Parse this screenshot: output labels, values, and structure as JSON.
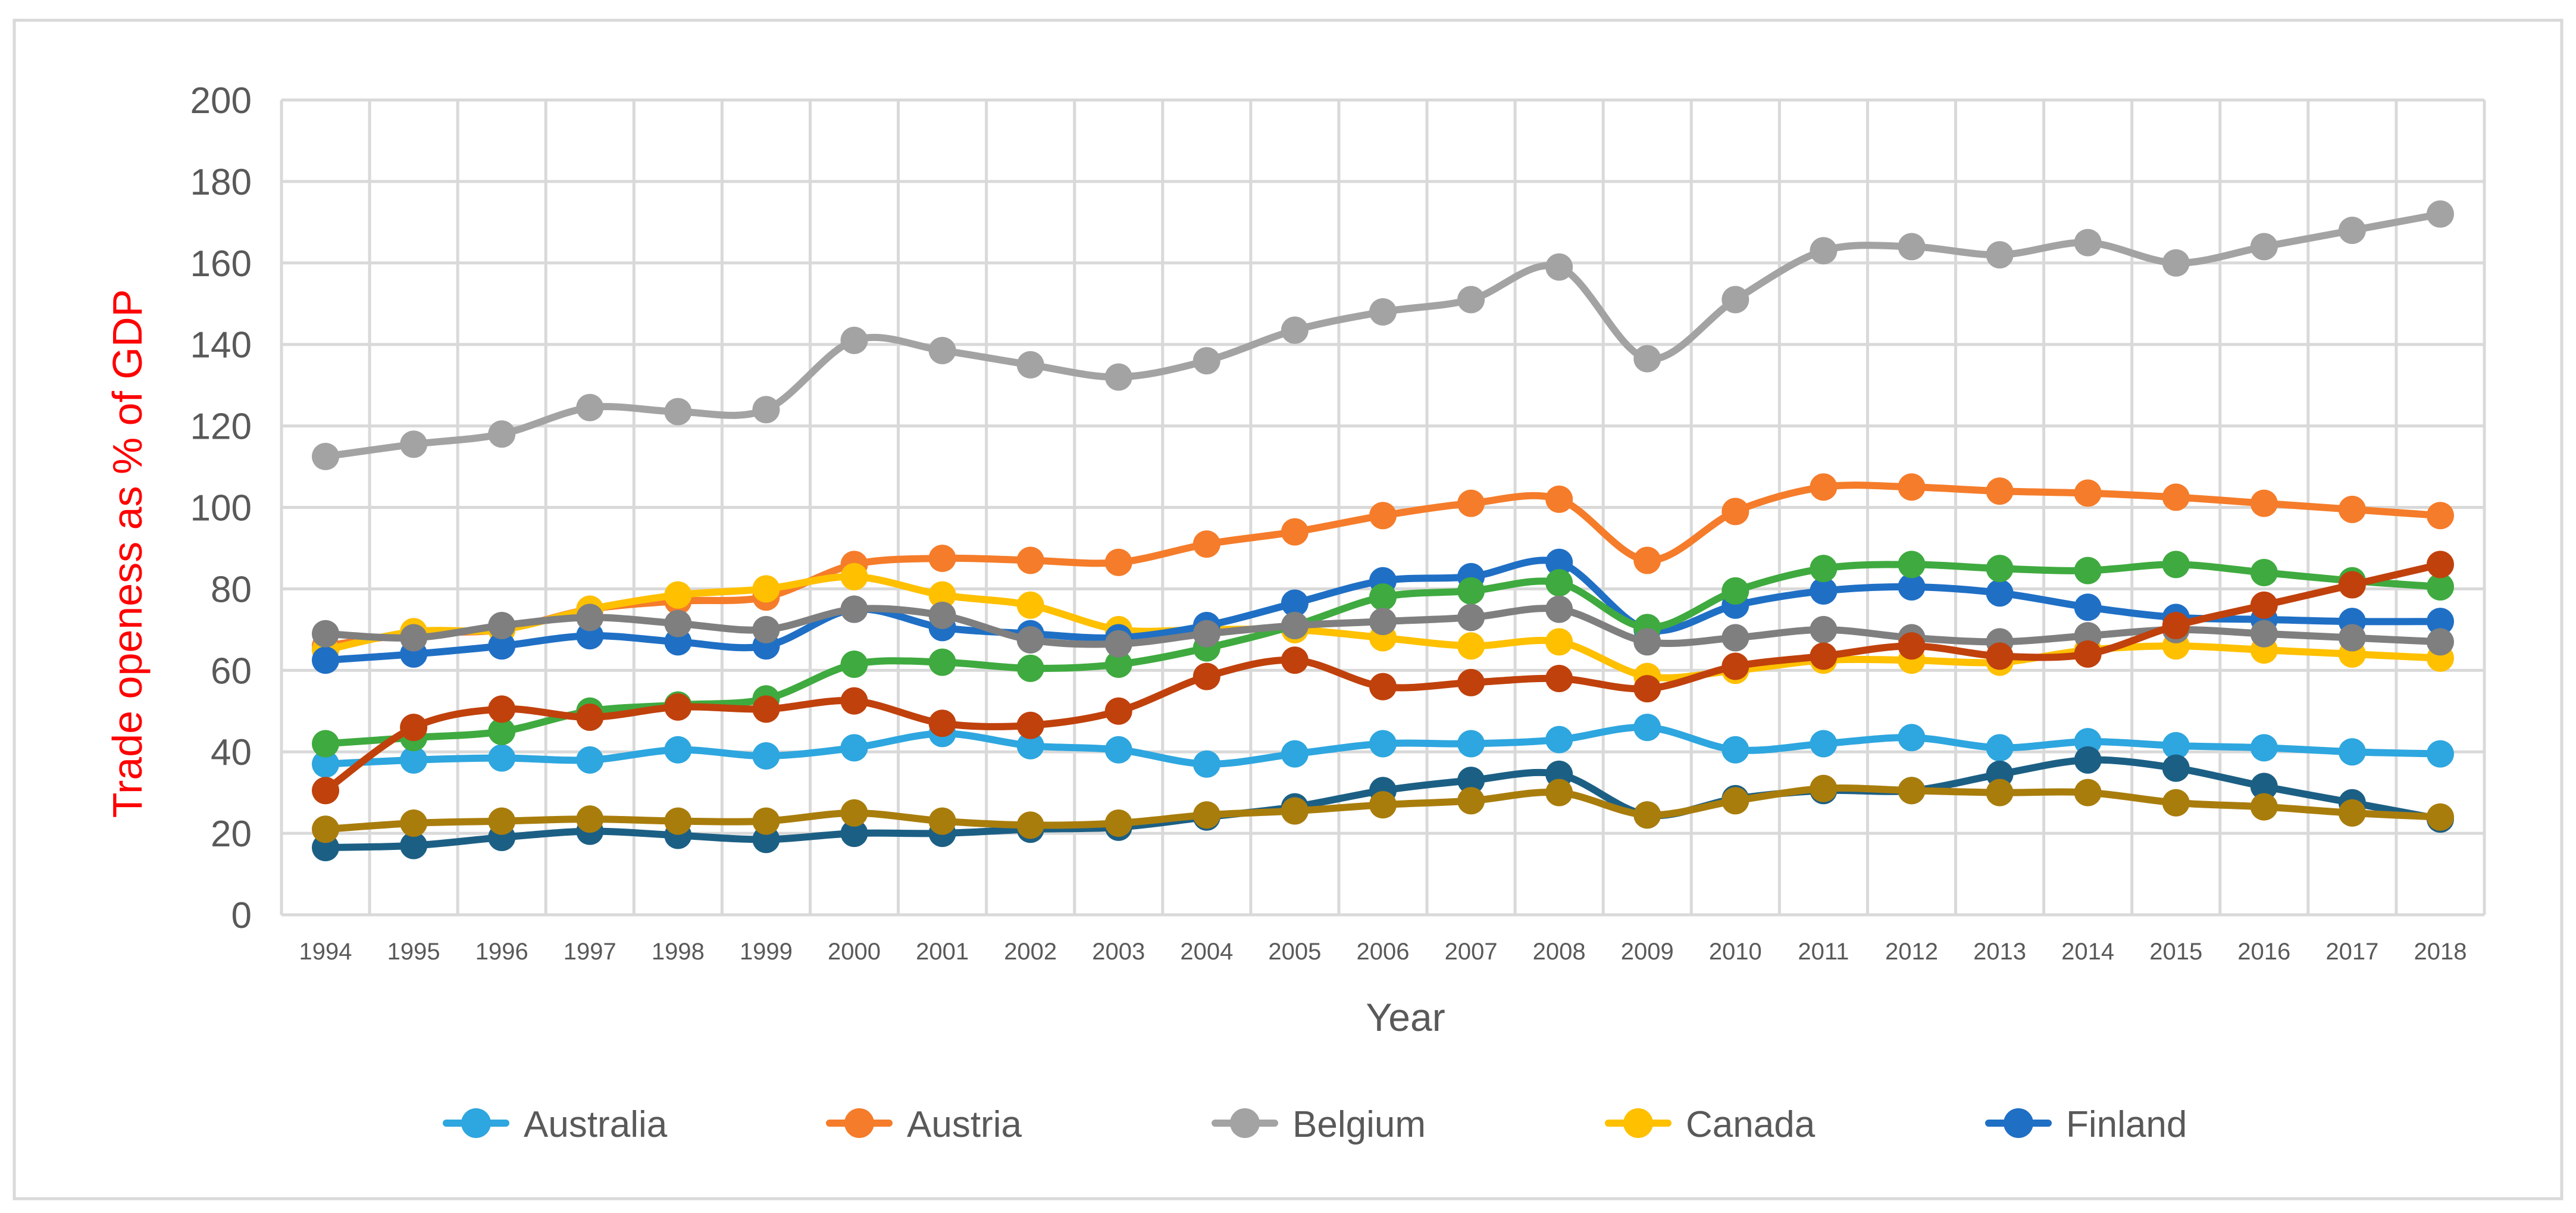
{
  "chart_data": {
    "type": "line",
    "title": "",
    "xlabel": "Year",
    "ylabel": "Trade openess as % of GDP",
    "ylim": [
      0,
      200
    ],
    "yticks": [
      "0",
      "20",
      "40",
      "60",
      "80",
      "100",
      "120",
      "140",
      "160",
      "180",
      "200"
    ],
    "grid": true,
    "legend_position": "bottom",
    "categories": [
      "1994",
      "1995",
      "1996",
      "1997",
      "1998",
      "1999",
      "2000",
      "2001",
      "2002",
      "2003",
      "2004",
      "2005",
      "2006",
      "2007",
      "2008",
      "2009",
      "2010",
      "2011",
      "2012",
      "2013",
      "2014",
      "2015",
      "2016",
      "2017",
      "2018"
    ],
    "series": [
      {
        "name": "Australia",
        "color": "#2ea6df",
        "in_legend": true,
        "values": [
          37,
          38,
          38.5,
          38,
          40.5,
          39,
          41,
          44.5,
          41.5,
          40.5,
          37,
          39.5,
          42,
          42,
          43,
          46,
          40.5,
          42,
          43.5,
          41,
          42.5,
          41.5,
          41,
          40,
          39.5
        ]
      },
      {
        "name": "Austria",
        "color": "#f57c2a",
        "in_legend": true,
        "values": [
          66,
          69,
          70,
          75,
          77,
          78,
          86,
          87.5,
          87,
          86.5,
          91,
          94,
          98,
          101,
          102,
          87,
          99,
          105,
          105,
          104,
          103.5,
          102.5,
          101,
          99.5,
          98
        ]
      },
      {
        "name": "Belgium",
        "color": "#a3a3a3",
        "in_legend": true,
        "values": [
          112.5,
          115.5,
          118,
          124.5,
          123.5,
          124,
          141,
          138.5,
          135,
          132,
          136,
          143.5,
          148,
          151,
          159,
          136.5,
          151,
          163,
          164,
          162,
          165,
          160,
          164,
          168,
          172
        ]
      },
      {
        "name": "Canada",
        "color": "#ffc000",
        "in_legend": true,
        "values": [
          65,
          69.5,
          70,
          75,
          78.5,
          80,
          83,
          78.5,
          76,
          70,
          70,
          70,
          68,
          66,
          67,
          58.5,
          60,
          62.5,
          62.5,
          62,
          65,
          66,
          65,
          64,
          63
        ]
      },
      {
        "name": "Finland",
        "color": "#1f6fc5",
        "in_legend": true,
        "values": [
          62.5,
          64,
          66,
          68.5,
          67,
          66,
          75,
          70.5,
          69,
          68,
          71,
          76.5,
          82,
          83,
          86.5,
          70,
          76,
          79.5,
          80.5,
          79,
          75.5,
          73,
          72.5,
          72,
          72
        ]
      },
      {
        "name": "",
        "color": "#3faa3f",
        "in_legend": false,
        "values": [
          42,
          43.5,
          45,
          50,
          51.5,
          53,
          61.5,
          62,
          60.5,
          61.5,
          65.5,
          71,
          78,
          79.5,
          81.5,
          70.5,
          79.5,
          85,
          86,
          85,
          84.5,
          86,
          84,
          82,
          80.5
        ]
      },
      {
        "name": "",
        "color": "#7f7f7f",
        "in_legend": false,
        "values": [
          69,
          68,
          71,
          73,
          71.5,
          70,
          75,
          73.5,
          67.5,
          66.5,
          69,
          71,
          72,
          73,
          75,
          67,
          68,
          70,
          68,
          67,
          68.5,
          70,
          69,
          68,
          67
        ]
      },
      {
        "name": "",
        "color": "#c0410c",
        "in_legend": false,
        "values": [
          30.5,
          46,
          50.5,
          48.5,
          51,
          50.5,
          52.5,
          47,
          46.5,
          50,
          58.5,
          62.5,
          56,
          57,
          58,
          55.5,
          61,
          63.5,
          66,
          63.5,
          64,
          71,
          76,
          81,
          86
        ]
      },
      {
        "name": "",
        "color": "#1c5f84",
        "in_legend": false,
        "values": [
          16.5,
          17,
          19,
          20.5,
          19.5,
          18.5,
          20,
          20,
          21,
          21.5,
          24,
          26.5,
          30.5,
          33,
          34.5,
          24.5,
          28.5,
          30.5,
          30.5,
          34.5,
          38,
          36,
          31.5,
          27.5,
          23.5
        ]
      },
      {
        "name": "",
        "color": "#a97d0c",
        "in_legend": false,
        "values": [
          21,
          22.5,
          23,
          23.5,
          23,
          23,
          25,
          23,
          22,
          22.5,
          24.5,
          25.5,
          27,
          28,
          30,
          24.5,
          28,
          31,
          30.5,
          30,
          30,
          27.5,
          26.5,
          25,
          24
        ]
      }
    ]
  }
}
